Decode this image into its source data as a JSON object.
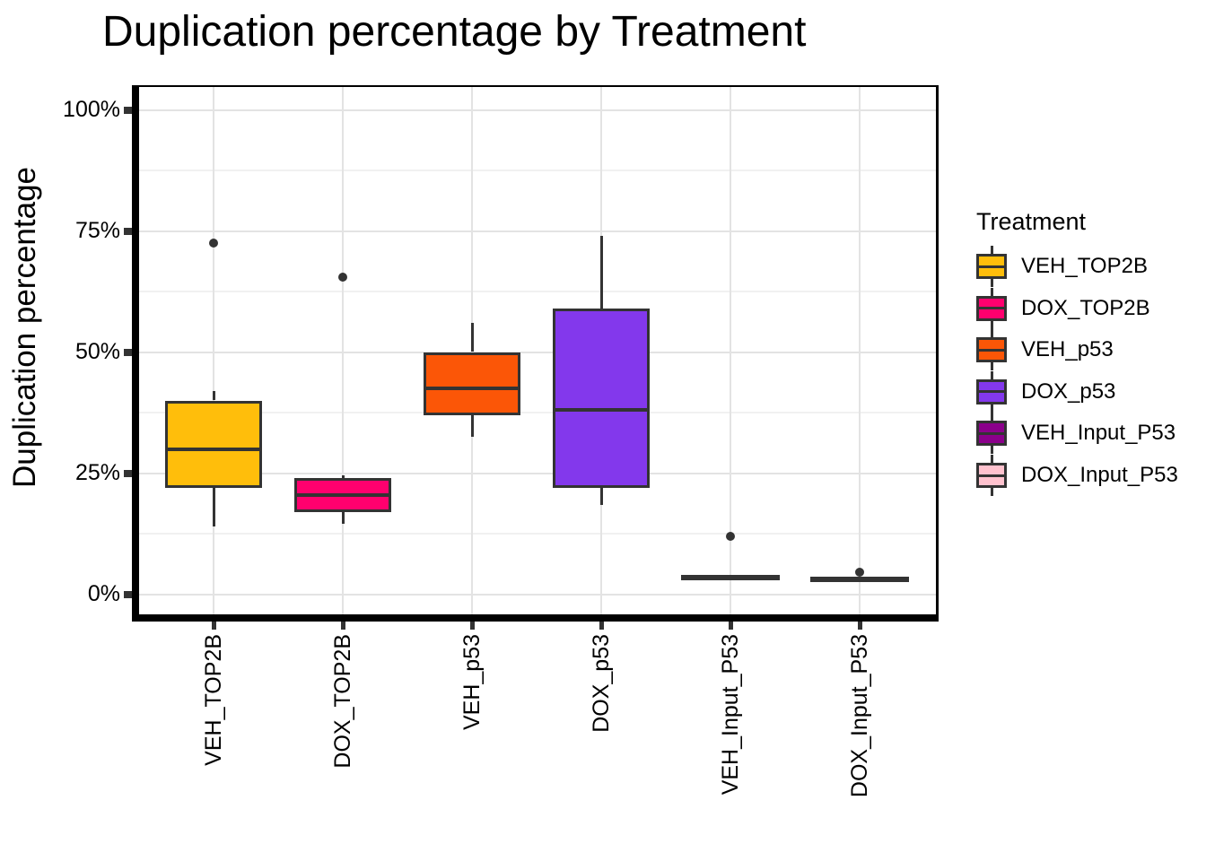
{
  "title": "Duplication percentage by Treatment",
  "y_axis": {
    "label": "Duplication percentage",
    "ticks": [
      "0%",
      "25%",
      "50%",
      "75%",
      "100%"
    ],
    "tick_values": [
      0,
      25,
      50,
      75,
      100
    ],
    "minor_values": [
      12.5,
      37.5,
      62.5,
      87.5
    ]
  },
  "x_axis": {
    "categories": [
      "VEH_TOP2B",
      "DOX_TOP2B",
      "VEH_p53",
      "DOX_p53",
      "VEH_Input_P53",
      "DOX_Input_P53"
    ]
  },
  "legend": {
    "title": "Treatment",
    "items": [
      {
        "label": "VEH_TOP2B",
        "color": "#FFBE0B"
      },
      {
        "label": "DOX_TOP2B",
        "color": "#FF006E"
      },
      {
        "label": "VEH_p53",
        "color": "#FB5607"
      },
      {
        "label": "DOX_p53",
        "color": "#8338EC"
      },
      {
        "label": "VEH_Input_P53",
        "color": "#8B008B"
      },
      {
        "label": "DOX_Input_P53",
        "color": "#FFC2CE"
      }
    ]
  },
  "chart_data": {
    "type": "boxplot",
    "title": "Duplication percentage by Treatment",
    "xlabel": "",
    "ylabel": "Duplication percentage",
    "ylim": [
      0,
      100
    ],
    "y_unit": "%",
    "grid": "on",
    "legend_position": "right",
    "categories": [
      "VEH_TOP2B",
      "DOX_TOP2B",
      "VEH_p53",
      "DOX_p53",
      "VEH_Input_P53",
      "DOX_Input_P53"
    ],
    "series": [
      {
        "name": "VEH_TOP2B",
        "color": "#FFBE0B",
        "min": 14,
        "q1": 22,
        "median": 30,
        "q3": 40,
        "max": 42,
        "outliers": [
          72.5
        ]
      },
      {
        "name": "DOX_TOP2B",
        "color": "#FF006E",
        "min": 14.5,
        "q1": 17,
        "median": 20.5,
        "q3": 24,
        "max": 24.5,
        "outliers": [
          65.5
        ]
      },
      {
        "name": "VEH_p53",
        "color": "#FB5607",
        "min": 32.5,
        "q1": 37,
        "median": 42.5,
        "q3": 50,
        "max": 56,
        "outliers": []
      },
      {
        "name": "DOX_p53",
        "color": "#8338EC",
        "min": 18.5,
        "q1": 22,
        "median": 38,
        "q3": 59,
        "max": 74,
        "outliers": []
      },
      {
        "name": "VEH_Input_P53",
        "color": "#8B008B",
        "min": 3.5,
        "q1": 3.5,
        "median": 3.5,
        "q3": 3.5,
        "max": 3.5,
        "outliers": [
          12
        ]
      },
      {
        "name": "DOX_Input_P53",
        "color": "#FFC2CE",
        "min": 3,
        "q1": 3,
        "median": 3,
        "q3": 3,
        "max": 3,
        "outliers": [
          4.5
        ]
      }
    ]
  }
}
